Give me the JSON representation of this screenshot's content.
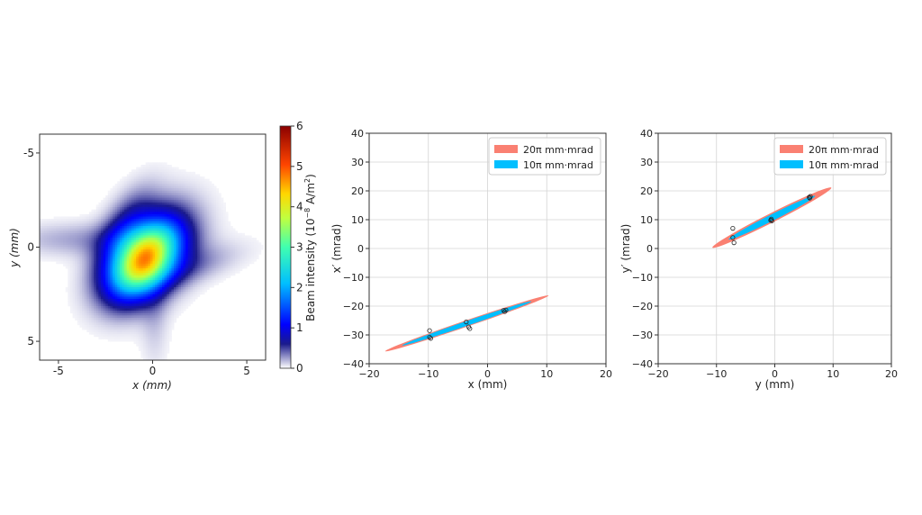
{
  "chart_data": [
    {
      "type": "heatmap",
      "xlabel": "x (mm)",
      "ylabel": "y (mm)",
      "xlim": [
        -6,
        6
      ],
      "ylim": [
        -6,
        6
      ],
      "y_inverted": true,
      "xticks": [
        "-5",
        "0",
        "5"
      ],
      "yticks": [
        "-5",
        "0",
        "5"
      ],
      "grid": false,
      "colorbar": {
        "label_main": "Beam intensity (10",
        "label_exp": "−8",
        "label_unit": " A/m",
        "label_sq": "2",
        "label_end": ")",
        "range": [
          0,
          6
        ],
        "ticks": [
          "0",
          "1",
          "2",
          "3",
          "4",
          "5",
          "6"
        ],
        "colormap": "jet"
      },
      "blobs": [
        {
          "cx": -0.5,
          "cy": 0.7,
          "sx": 0.9,
          "sy": 1.4,
          "angle": 40,
          "peak": 3.2
        },
        {
          "cx": -0.2,
          "cy": 0.4,
          "sx": 1.2,
          "sy": 1.8,
          "angle": 40,
          "peak": 1.5
        },
        {
          "cx": -1.5,
          "cy": -1.0,
          "sx": 0.7,
          "sy": 1.6,
          "angle": 30,
          "peak": 0.5
        },
        {
          "cx": -3.2,
          "cy": -0.4,
          "sx": 3.0,
          "sy": 0.6,
          "angle": 0,
          "peak": 0.25
        },
        {
          "cx": 1.6,
          "cy": 1.1,
          "sx": 2.0,
          "sy": 0.6,
          "angle": -15,
          "peak": 0.3
        },
        {
          "cx": 0.1,
          "cy": 3.4,
          "sx": 0.5,
          "sy": 2.0,
          "angle": 0,
          "peak": 0.15
        }
      ]
    },
    {
      "type": "scatter",
      "xlabel": "x (mm)",
      "ylabel": "x′ (mrad)",
      "xlim": [
        -20,
        20
      ],
      "ylim": [
        -40,
        40
      ],
      "xticks": [
        "−20",
        "−10",
        "0",
        "10",
        "20"
      ],
      "yticks": [
        "40",
        "30",
        "20",
        "10",
        "0",
        "−10",
        "−20",
        "−30",
        "−40"
      ],
      "grid": true,
      "legend_position": "top-right",
      "ellipses": [
        {
          "name": "20π mm·mrad",
          "color": "#fa8072",
          "cx": -3.5,
          "cy": -26.0,
          "x_end": 10.3,
          "slope": 0.7,
          "half_width": 1.1
        },
        {
          "name": "10π mm·mrad",
          "color": "#00bfff",
          "cx": -3.5,
          "cy": -26.0,
          "x_end": 7.4,
          "slope": 0.7,
          "half_width": 0.8
        }
      ],
      "points": [
        {
          "x": -9.8,
          "y": -28.5
        },
        {
          "x": -9.8,
          "y": -30.8
        },
        {
          "x": -9.6,
          "y": -31.2
        },
        {
          "x": -3.6,
          "y": -25.5
        },
        {
          "x": -3.2,
          "y": -27.2
        },
        {
          "x": -3.0,
          "y": -27.8
        },
        {
          "x": 2.7,
          "y": -21.5
        },
        {
          "x": 2.9,
          "y": -21.9
        },
        {
          "x": 3.1,
          "y": -21.4
        }
      ]
    },
    {
      "type": "scatter",
      "xlabel": "y (mm)",
      "ylabel": "y′ (mrad)",
      "xlim": [
        -20,
        20
      ],
      "ylim": [
        -40,
        40
      ],
      "xticks": [
        "−20",
        "−10",
        "0",
        "10",
        "20"
      ],
      "yticks": [
        "40",
        "30",
        "20",
        "10",
        "0",
        "−10",
        "−20",
        "−30",
        "−40"
      ],
      "grid": true,
      "legend_position": "top-right",
      "ellipses": [
        {
          "name": "20π mm·mrad",
          "color": "#fa8072",
          "cx": -0.5,
          "cy": 10.7,
          "x_end": 9.7,
          "slope": 1.02,
          "half_width": 1.6
        },
        {
          "name": "10π mm·mrad",
          "color": "#00bfff",
          "cx": -0.5,
          "cy": 10.7,
          "x_end": 6.9,
          "slope": 1.02,
          "half_width": 1.1
        }
      ],
      "points": [
        {
          "x": -7.2,
          "y": 7.0
        },
        {
          "x": -7.2,
          "y": 3.8
        },
        {
          "x": -7.0,
          "y": 2.0
        },
        {
          "x": -0.7,
          "y": 9.8
        },
        {
          "x": -0.6,
          "y": 10.2
        },
        {
          "x": -0.5,
          "y": 9.6
        },
        {
          "x": 5.9,
          "y": 17.8
        },
        {
          "x": 6.1,
          "y": 18.1
        },
        {
          "x": 6.0,
          "y": 17.5
        }
      ]
    }
  ]
}
